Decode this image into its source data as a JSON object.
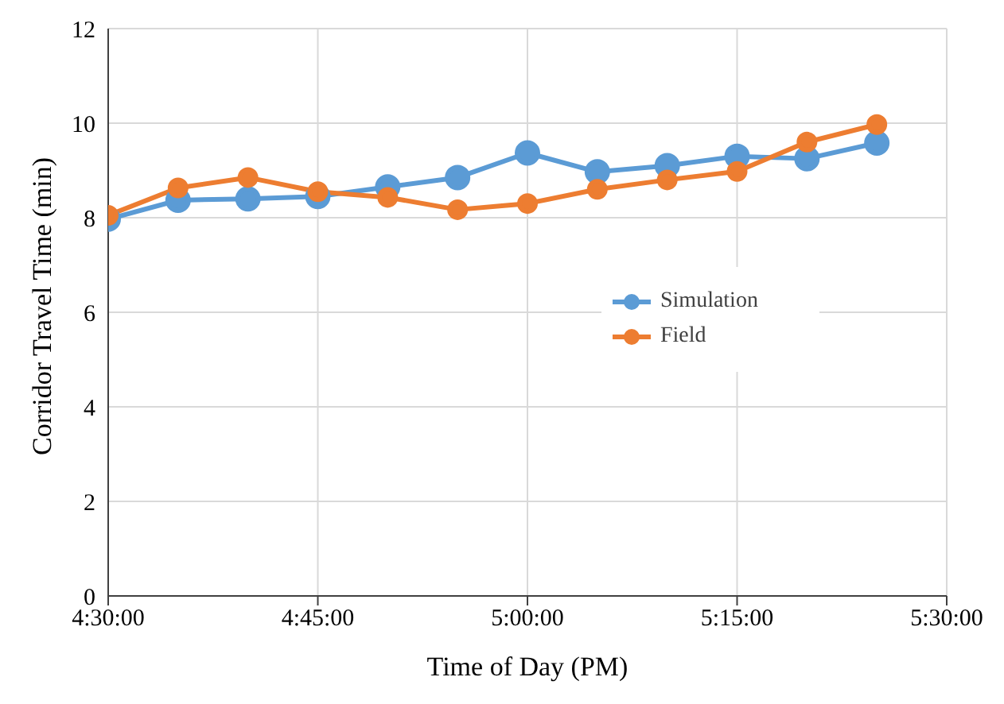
{
  "chart_data": {
    "type": "line",
    "xlabel": "Time of Day (PM)",
    "ylabel": "Corridor Travel Time (min)",
    "x": [
      4.5,
      4.583333,
      4.666667,
      4.75,
      4.833333,
      4.916667,
      5,
      5.083333,
      5.166667,
      5.25,
      5.333333,
      5.416667
    ],
    "series": [
      {
        "name": "Simulation",
        "color": "#5b9bd5",
        "values": [
          7.97,
          8.37,
          8.4,
          8.45,
          8.65,
          8.85,
          9.37,
          8.97,
          9.1,
          9.3,
          9.25,
          9.58
        ]
      },
      {
        "name": "Field",
        "color": "#ed7d31",
        "values": [
          8.05,
          8.63,
          8.85,
          8.55,
          8.43,
          8.17,
          8.3,
          8.6,
          8.8,
          8.98,
          9.6,
          9.97
        ]
      }
    ],
    "xlim": [
      4.5,
      5.5
    ],
    "xticks": [
      {
        "value": 4.5,
        "label": "4:30:00"
      },
      {
        "value": 4.75,
        "label": "4:45:00"
      },
      {
        "value": 5,
        "label": "5:00:00"
      },
      {
        "value": 5.25,
        "label": "5:15:00"
      },
      {
        "value": 5.5,
        "label": "5:30:00"
      }
    ],
    "ylim": [
      0,
      12
    ],
    "yticks": [
      0,
      2,
      4,
      6,
      8,
      10,
      12
    ],
    "grid": true,
    "legend": "right",
    "marker": "circle",
    "line_style": "solid"
  }
}
